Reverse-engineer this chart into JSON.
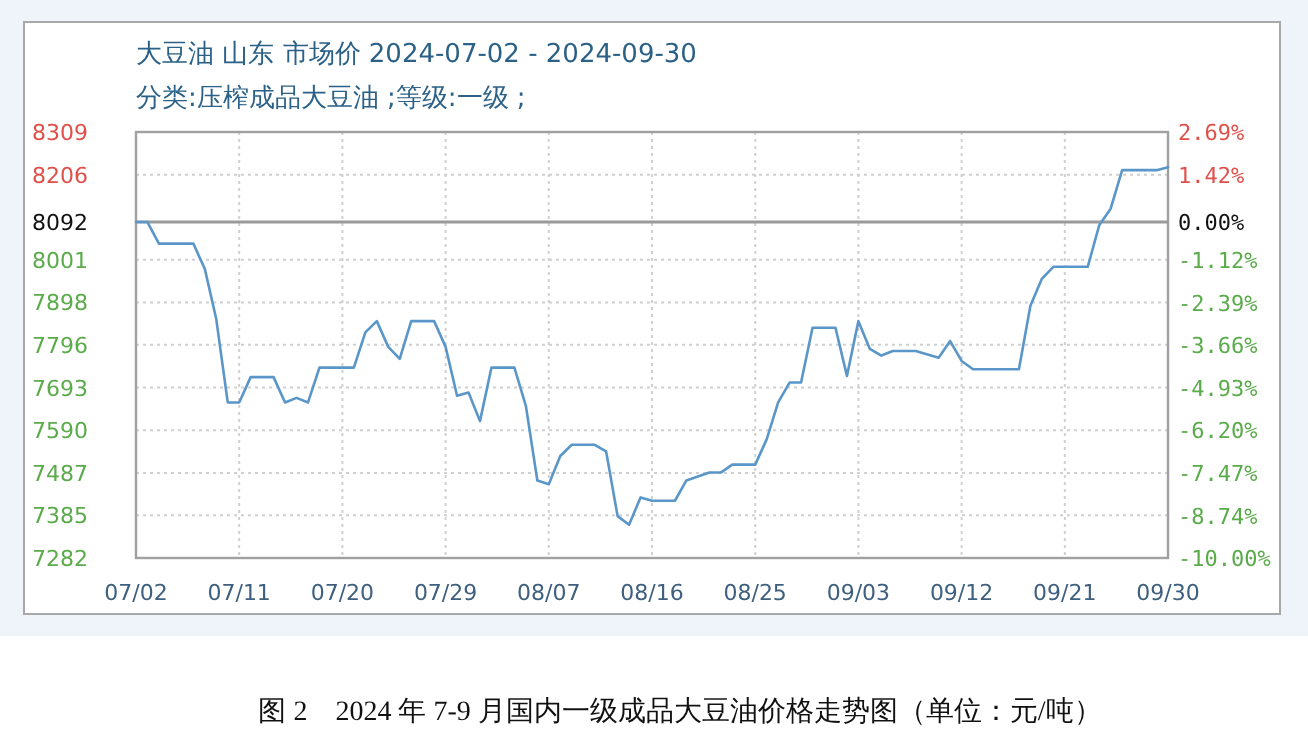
{
  "chart_data": {
    "type": "line",
    "title": "大豆油 山东 市场价 2024-07-02 - 2024-09-30",
    "subtitle": "分类:压榨成品大豆油 ;等级:一级 ;",
    "annotations": [
      "图 2　2024 年 7-9 月国内一级成品大豆油价格走势图（单位：元/吨）"
    ],
    "x": [
      "2024-07-02",
      "2024-07-03",
      "2024-07-04",
      "2024-07-07",
      "2024-07-08",
      "2024-07-09",
      "2024-07-10",
      "2024-07-11",
      "2024-07-12",
      "2024-07-14",
      "2024-07-15",
      "2024-07-16",
      "2024-07-17",
      "2024-07-18",
      "2024-07-21",
      "2024-07-22",
      "2024-07-23",
      "2024-07-24",
      "2024-07-25",
      "2024-07-26",
      "2024-07-28",
      "2024-07-29",
      "2024-07-30",
      "2024-07-31",
      "2024-08-01",
      "2024-08-02",
      "2024-08-04",
      "2024-08-05",
      "2024-08-06",
      "2024-08-07",
      "2024-08-08",
      "2024-08-09",
      "2024-08-11",
      "2024-08-12",
      "2024-08-13",
      "2024-08-14",
      "2024-08-15",
      "2024-08-16",
      "2024-08-18",
      "2024-08-19",
      "2024-08-21",
      "2024-08-22",
      "2024-08-23",
      "2024-08-25",
      "2024-08-26",
      "2024-08-27",
      "2024-08-28",
      "2024-08-29",
      "2024-08-30",
      "2024-09-01",
      "2024-09-02",
      "2024-09-03",
      "2024-09-04",
      "2024-09-05",
      "2024-09-06",
      "2024-09-08",
      "2024-09-10",
      "2024-09-11",
      "2024-09-12",
      "2024-09-13",
      "2024-09-17",
      "2024-09-18",
      "2024-09-19",
      "2024-09-20",
      "2024-09-23",
      "2024-09-24",
      "2024-09-25",
      "2024-09-26",
      "2024-09-29",
      "2024-09-30"
    ],
    "series": [
      {
        "color": "#5a96c8",
        "values": [
          8092,
          8092,
          8040,
          8040,
          7979,
          7858,
          7657,
          7657,
          7718,
          7718,
          7657,
          7668,
          7657,
          7741,
          7741,
          7826,
          7853,
          7791,
          7762,
          7853,
          7853,
          7791,
          7673,
          7681,
          7612,
          7741,
          7741,
          7649,
          7469,
          7460,
          7528,
          7555,
          7555,
          7539,
          7383,
          7362,
          7428,
          7420,
          7420,
          7469,
          7488,
          7488,
          7507,
          7507,
          7568,
          7657,
          7705,
          7705,
          7837,
          7837,
          7721,
          7853,
          7786,
          7770,
          7781,
          7781,
          7765,
          7805,
          7757,
          7737,
          7737,
          7890,
          7955,
          7984,
          7984,
          8084,
          8124,
          8217,
          8217,
          8224
        ]
      }
    ],
    "xlim": [
      "2024-07-02",
      "2024-09-30"
    ],
    "xticks": [
      {
        "value": "2024-07-02",
        "label": "07/02"
      },
      {
        "value": "2024-07-11",
        "label": "07/11"
      },
      {
        "value": "2024-07-20",
        "label": "07/20"
      },
      {
        "value": "2024-07-29",
        "label": "07/29"
      },
      {
        "value": "2024-08-07",
        "label": "08/07"
      },
      {
        "value": "2024-08-16",
        "label": "08/16"
      },
      {
        "value": "2024-08-25",
        "label": "08/25"
      },
      {
        "value": "2024-09-03",
        "label": "09/03"
      },
      {
        "value": "2024-09-12",
        "label": "09/12"
      },
      {
        "value": "2024-09-21",
        "label": "09/21"
      },
      {
        "value": "2024-09-30",
        "label": "09/30"
      }
    ],
    "ylim": [
      7282,
      8309
    ],
    "yticks": [
      8309,
      8206,
      8092,
      8001,
      7898,
      7796,
      7693,
      7590,
      7487,
      7385,
      7282
    ],
    "y2lim": [
      -10.0,
      2.69
    ],
    "y2ticks": [
      {
        "value": 2.69,
        "label": "2.69%"
      },
      {
        "value": 1.42,
        "label": "1.42%"
      },
      {
        "value": 0,
        "label": "0.00%"
      },
      {
        "value": -1.12,
        "label": "-1.12%"
      },
      {
        "value": -2.39,
        "label": "-2.39%"
      },
      {
        "value": -3.66,
        "label": "-3.66%"
      },
      {
        "value": -4.93,
        "label": "-4.93%"
      },
      {
        "value": -6.2,
        "label": "-6.20%"
      },
      {
        "value": -7.47,
        "label": "-7.47%"
      },
      {
        "value": -8.74,
        "label": "-8.74%"
      },
      {
        "value": -10.0,
        "label": "-10.00%"
      }
    ],
    "ref_lines": [
      {
        "axis": "y",
        "value": 8092,
        "color": "#9a9a9a"
      }
    ],
    "grid": true
  }
}
